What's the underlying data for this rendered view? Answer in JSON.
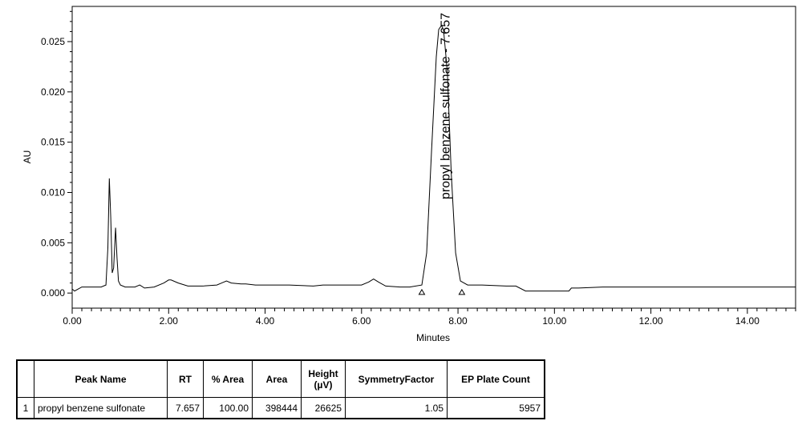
{
  "chart_data": {
    "type": "line",
    "xlabel": "Minutes",
    "ylabel": "AU",
    "xlim": [
      0.0,
      15.0
    ],
    "ylim": [
      -0.0015,
      0.0285
    ],
    "x_ticks": [
      "0.00",
      "2.00",
      "4.00",
      "6.00",
      "8.00",
      "10.00",
      "12.00",
      "14.00"
    ],
    "y_ticks": [
      "0.000",
      "0.005",
      "0.010",
      "0.015",
      "0.020",
      "0.025"
    ],
    "series": [
      {
        "x": [
          0.0,
          0.05,
          0.2,
          0.4,
          0.6,
          0.7,
          0.74,
          0.77,
          0.8,
          0.83,
          0.86,
          0.9,
          0.93,
          0.96,
          1.0,
          1.1,
          1.3,
          1.4,
          1.5,
          1.7,
          1.9,
          2.0,
          2.05,
          2.2,
          2.4,
          2.7,
          3.0,
          3.1,
          3.2,
          3.3,
          3.5,
          3.6,
          3.8,
          4.0,
          4.5,
          5.0,
          5.2,
          5.5,
          6.0,
          6.15,
          6.25,
          6.35,
          6.5,
          6.8,
          7.0,
          7.25,
          7.35,
          7.45,
          7.55,
          7.6,
          7.657,
          7.7,
          7.78,
          7.86,
          7.95,
          8.05,
          8.2,
          8.5,
          9.0,
          9.2,
          9.4,
          10.0,
          10.3,
          10.35,
          10.5,
          11.0,
          12.0,
          13.0,
          14.0,
          15.0
        ],
        "values": [
          0.0004,
          0.0002,
          0.0006,
          0.0006,
          0.0006,
          0.0008,
          0.0045,
          0.0114,
          0.0075,
          0.002,
          0.0025,
          0.0065,
          0.0035,
          0.0012,
          0.0008,
          0.0006,
          0.0006,
          0.0008,
          0.0005,
          0.0006,
          0.001,
          0.0013,
          0.0013,
          0.001,
          0.0007,
          0.0007,
          0.0008,
          0.001,
          0.0012,
          0.001,
          0.0009,
          0.0009,
          0.0008,
          0.0008,
          0.0008,
          0.0007,
          0.0008,
          0.0008,
          0.0008,
          0.0011,
          0.0014,
          0.0011,
          0.0007,
          0.0006,
          0.0006,
          0.0008,
          0.004,
          0.014,
          0.0235,
          0.0262,
          0.0266,
          0.0262,
          0.022,
          0.012,
          0.004,
          0.0012,
          0.0008,
          0.0008,
          0.0007,
          0.0007,
          0.0002,
          0.0002,
          0.0002,
          0.0005,
          0.0005,
          0.0006,
          0.0006,
          0.0006,
          0.0006,
          0.0006
        ]
      }
    ],
    "baseline_markers_x": [
      7.25,
      8.08
    ],
    "annotations": [
      {
        "text": "propyl benzene sulfonate - 7.657",
        "x": 7.657,
        "rotation": "vertical"
      }
    ]
  },
  "table": {
    "headers": [
      "",
      "Peak Name",
      "RT",
      "% Area",
      "Area",
      "Height (µV)",
      "SymmetryFactor",
      "EP Plate Count"
    ],
    "rows": [
      [
        "1",
        "propyl benzene sulfonate",
        "7.657",
        "100.00",
        "398444",
        "26625",
        "1.05",
        "5957"
      ]
    ]
  }
}
